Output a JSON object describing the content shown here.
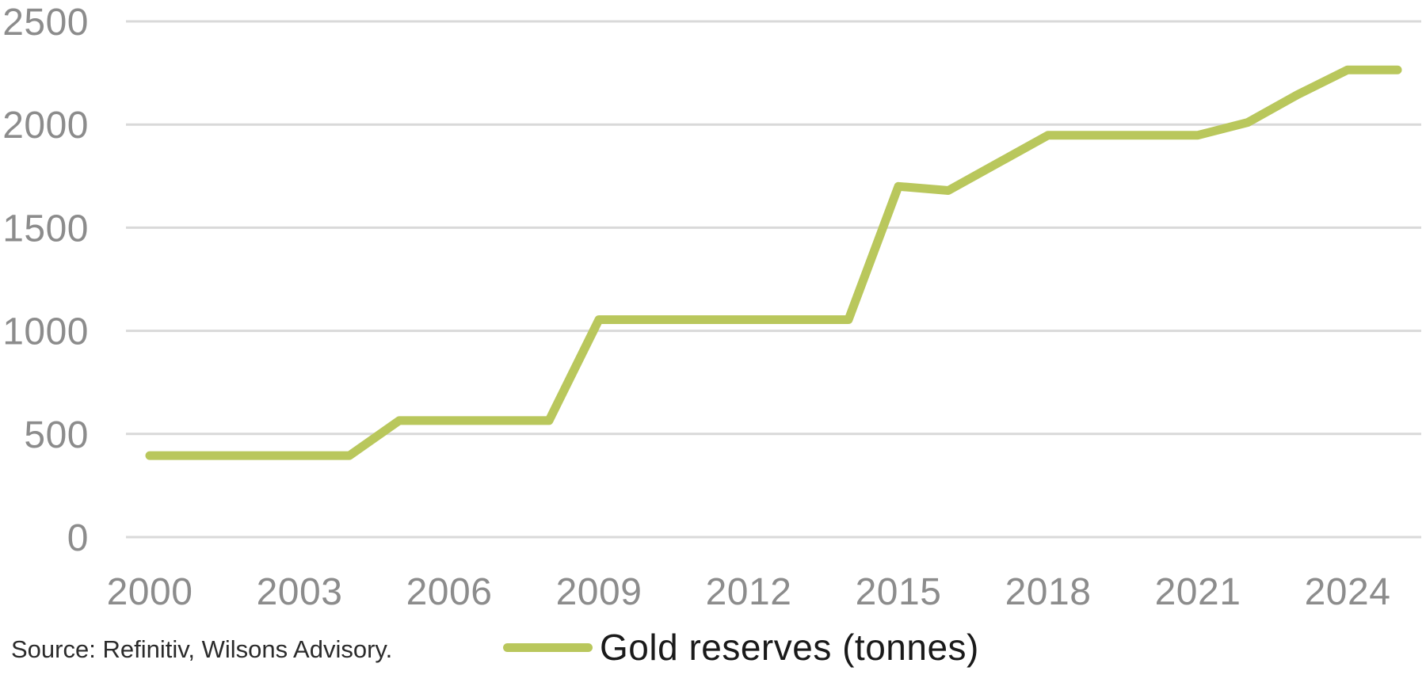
{
  "chart_data": {
    "type": "line",
    "title": "",
    "xlabel": "",
    "ylabel": "",
    "x": [
      2000,
      2001,
      2002,
      2003,
      2004,
      2005,
      2006,
      2007,
      2008,
      2009,
      2010,
      2011,
      2012,
      2013,
      2014,
      2015,
      2016,
      2017,
      2018,
      2019,
      2020,
      2021,
      2022,
      2023,
      2024,
      2025
    ],
    "series": [
      {
        "name": "Gold reserves (tonnes)",
        "values": [
          395,
          395,
          395,
          395,
          395,
          565,
          565,
          565,
          565,
          1054,
          1054,
          1054,
          1054,
          1054,
          1054,
          1700,
          1680,
          1814,
          1948,
          1948,
          1948,
          1948,
          2010,
          2145,
          2265,
          2265
        ]
      }
    ],
    "x_ticks": [
      2000,
      2003,
      2006,
      2009,
      2012,
      2015,
      2018,
      2021,
      2024
    ],
    "y_ticks": [
      0,
      500,
      1000,
      1500,
      2000,
      2500
    ],
    "ylim": [
      0,
      2500
    ],
    "xlim": [
      2000,
      2025
    ],
    "grid": "horizontal",
    "legend_position": "bottom-center"
  },
  "legend": {
    "label": "Gold reserves (tonnes)"
  },
  "source": {
    "text": "Source: Refinitiv, Wilsons Advisory."
  },
  "colors": {
    "series_line": "#b9c75c",
    "gridline": "#d9d9d9",
    "tick_text": "#8c8c8c",
    "legend_text": "#1a1a1a",
    "source_text": "#2b2b2b"
  }
}
